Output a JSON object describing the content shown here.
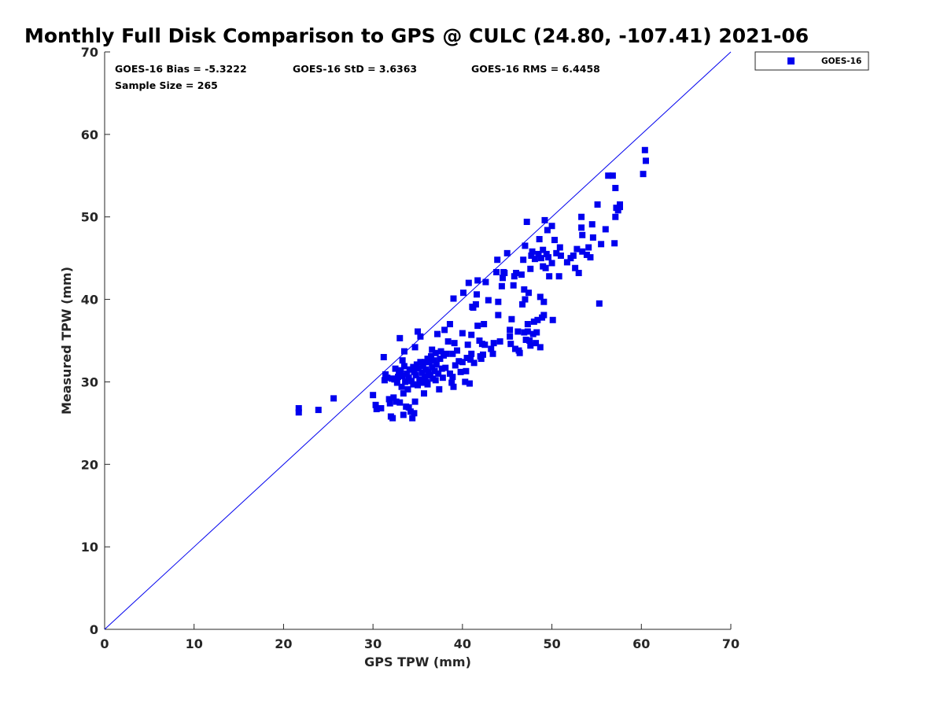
{
  "chart_data": {
    "type": "scatter",
    "title": "Monthly Full Disk Comparison to GPS @ CULC (24.80, -107.41) 2021-06",
    "xlabel": "GPS TPW (mm)",
    "ylabel": "Measured TPW (mm)",
    "xlim": [
      0,
      70
    ],
    "ylim": [
      0,
      70
    ],
    "xticks": [
      "0",
      "10",
      "20",
      "30",
      "40",
      "50",
      "60",
      "70"
    ],
    "yticks": [
      "0",
      "10",
      "20",
      "30",
      "40",
      "50",
      "60",
      "70"
    ],
    "grid": false,
    "legend_position": "top-right-outside",
    "reference_line": {
      "x": [
        0,
        70
      ],
      "y": [
        0,
        70
      ],
      "color": "#0000ee"
    },
    "stats": {
      "bias": "GOES-16 Bias = -5.3222",
      "std": "GOES-16 StD = 3.6363",
      "rms": "GOES-16 RMS = 6.4458",
      "sample": "Sample Size = 265"
    },
    "series": [
      {
        "name": "GOES-16",
        "color": "#0000ee",
        "marker": "square",
        "points": [
          [
            21.7,
            26.8
          ],
          [
            21.7,
            26.3
          ],
          [
            23.9,
            26.6
          ],
          [
            25.6,
            28.0
          ],
          [
            30.0,
            28.4
          ],
          [
            30.3,
            27.2
          ],
          [
            30.4,
            26.7
          ],
          [
            30.9,
            26.8
          ],
          [
            31.2,
            33.0
          ],
          [
            31.3,
            30.2
          ],
          [
            31.4,
            30.9
          ],
          [
            31.6,
            30.5
          ],
          [
            31.8,
            27.9
          ],
          [
            31.9,
            27.4
          ],
          [
            32.0,
            25.8
          ],
          [
            32.1,
            30.4
          ],
          [
            32.2,
            25.6
          ],
          [
            32.3,
            28.1
          ],
          [
            32.4,
            30.3
          ],
          [
            32.5,
            31.6
          ],
          [
            32.6,
            27.6
          ],
          [
            32.7,
            29.9
          ],
          [
            32.8,
            30.6
          ],
          [
            32.9,
            31.1
          ],
          [
            33.0,
            35.3
          ],
          [
            33.0,
            27.5
          ],
          [
            33.1,
            31.4
          ],
          [
            33.2,
            29.4
          ],
          [
            33.3,
            30.7
          ],
          [
            33.3,
            32.6
          ],
          [
            33.4,
            26.0
          ],
          [
            33.4,
            28.6
          ],
          [
            33.5,
            31.9
          ],
          [
            33.5,
            33.7
          ],
          [
            33.6,
            30.0
          ],
          [
            33.7,
            27.0
          ],
          [
            33.8,
            31.0
          ],
          [
            33.9,
            29.1
          ],
          [
            34.0,
            30.5
          ],
          [
            34.0,
            26.9
          ],
          [
            34.1,
            31.5
          ],
          [
            34.2,
            26.4
          ],
          [
            34.3,
            30.1
          ],
          [
            34.4,
            25.6
          ],
          [
            34.5,
            31.8
          ],
          [
            34.5,
            29.7
          ],
          [
            34.6,
            26.2
          ],
          [
            34.6,
            31.2
          ],
          [
            34.7,
            34.2
          ],
          [
            34.7,
            27.6
          ],
          [
            34.8,
            30.8
          ],
          [
            34.9,
            32.1
          ],
          [
            35.0,
            36.1
          ],
          [
            35.0,
            29.6
          ],
          [
            35.1,
            31.6
          ],
          [
            35.2,
            30.3
          ],
          [
            35.3,
            32.4
          ],
          [
            35.3,
            35.5
          ],
          [
            35.4,
            29.9
          ],
          [
            35.5,
            31.1
          ],
          [
            35.6,
            31.9
          ],
          [
            35.7,
            28.6
          ],
          [
            35.8,
            30.6
          ],
          [
            35.8,
            32.4
          ],
          [
            35.9,
            31.5
          ],
          [
            36.0,
            30.0
          ],
          [
            36.1,
            32.8
          ],
          [
            36.1,
            29.7
          ],
          [
            36.2,
            31.2
          ],
          [
            36.3,
            32.4
          ],
          [
            36.4,
            30.8
          ],
          [
            36.5,
            33.1
          ],
          [
            36.6,
            31.8
          ],
          [
            36.6,
            33.9
          ],
          [
            36.7,
            30.4
          ],
          [
            36.8,
            32.6
          ],
          [
            36.9,
            31.3
          ],
          [
            37.0,
            33.5
          ],
          [
            37.0,
            30.2
          ],
          [
            37.1,
            32.1
          ],
          [
            37.2,
            35.8
          ],
          [
            37.3,
            31.0
          ],
          [
            37.4,
            29.1
          ],
          [
            37.5,
            32.8
          ],
          [
            37.6,
            33.7
          ],
          [
            37.7,
            31.6
          ],
          [
            37.8,
            30.5
          ],
          [
            37.9,
            33.2
          ],
          [
            38.0,
            36.3
          ],
          [
            38.1,
            31.7
          ],
          [
            38.2,
            33.4
          ],
          [
            38.4,
            34.9
          ],
          [
            38.6,
            37.0
          ],
          [
            38.6,
            31.0
          ],
          [
            38.8,
            29.9
          ],
          [
            38.9,
            30.6
          ],
          [
            38.9,
            33.4
          ],
          [
            39.0,
            29.4
          ],
          [
            39.0,
            40.1
          ],
          [
            39.1,
            34.7
          ],
          [
            39.2,
            32.0
          ],
          [
            39.4,
            33.8
          ],
          [
            39.6,
            32.5
          ],
          [
            39.8,
            31.2
          ],
          [
            40.0,
            32.4
          ],
          [
            40.0,
            35.9
          ],
          [
            40.1,
            40.8
          ],
          [
            40.3,
            30.0
          ],
          [
            40.4,
            31.3
          ],
          [
            40.5,
            32.9
          ],
          [
            40.6,
            34.5
          ],
          [
            40.7,
            42.0
          ],
          [
            40.8,
            29.8
          ],
          [
            40.9,
            32.7
          ],
          [
            41.0,
            35.7
          ],
          [
            41.0,
            33.4
          ],
          [
            41.1,
            39.1
          ],
          [
            41.2,
            39.0
          ],
          [
            41.3,
            32.3
          ],
          [
            41.5,
            39.4
          ],
          [
            41.6,
            40.6
          ],
          [
            41.7,
            42.3
          ],
          [
            41.7,
            36.8
          ],
          [
            41.9,
            35.0
          ],
          [
            42.0,
            33.1
          ],
          [
            42.1,
            32.8
          ],
          [
            42.2,
            34.6
          ],
          [
            42.3,
            33.3
          ],
          [
            42.4,
            37.0
          ],
          [
            42.5,
            34.5
          ],
          [
            42.6,
            42.1
          ],
          [
            42.9,
            39.9
          ],
          [
            43.2,
            34.0
          ],
          [
            43.4,
            33.4
          ],
          [
            43.5,
            34.7
          ],
          [
            43.8,
            43.3
          ],
          [
            43.9,
            44.8
          ],
          [
            44.0,
            38.1
          ],
          [
            44.0,
            39.7
          ],
          [
            44.2,
            34.9
          ],
          [
            44.4,
            41.6
          ],
          [
            44.5,
            42.6
          ],
          [
            44.6,
            43.3
          ],
          [
            44.7,
            43.2
          ],
          [
            45.0,
            45.6
          ],
          [
            45.3,
            35.5
          ],
          [
            45.3,
            36.3
          ],
          [
            45.4,
            34.6
          ],
          [
            45.5,
            37.6
          ],
          [
            45.7,
            41.7
          ],
          [
            45.8,
            42.8
          ],
          [
            45.9,
            34.0
          ],
          [
            46.0,
            43.2
          ],
          [
            46.2,
            36.1
          ],
          [
            46.3,
            33.8
          ],
          [
            46.4,
            33.5
          ],
          [
            46.6,
            43.0
          ],
          [
            46.7,
            39.4
          ],
          [
            46.8,
            44.8
          ],
          [
            46.9,
            41.2
          ],
          [
            46.9,
            36.0
          ],
          [
            47.0,
            40.0
          ],
          [
            47.0,
            46.5
          ],
          [
            47.1,
            35.1
          ],
          [
            47.2,
            49.4
          ],
          [
            47.3,
            36.1
          ],
          [
            47.3,
            37.0
          ],
          [
            47.4,
            40.8
          ],
          [
            47.5,
            35.0
          ],
          [
            47.6,
            34.4
          ],
          [
            47.6,
            43.7
          ],
          [
            47.7,
            45.3
          ],
          [
            47.8,
            45.8
          ],
          [
            47.9,
            35.8
          ],
          [
            48.0,
            37.3
          ],
          [
            48.1,
            44.9
          ],
          [
            48.2,
            34.7
          ],
          [
            48.3,
            36.0
          ],
          [
            48.4,
            37.5
          ],
          [
            48.5,
            45.5
          ],
          [
            48.6,
            47.3
          ],
          [
            48.7,
            34.2
          ],
          [
            48.7,
            40.3
          ],
          [
            48.8,
            45.0
          ],
          [
            48.9,
            37.8
          ],
          [
            49.0,
            46.0
          ],
          [
            49.0,
            44.0
          ],
          [
            49.1,
            38.1
          ],
          [
            49.1,
            39.7
          ],
          [
            49.2,
            49.6
          ],
          [
            49.3,
            43.8
          ],
          [
            49.4,
            45.5
          ],
          [
            49.5,
            48.4
          ],
          [
            49.6,
            45.1
          ],
          [
            49.7,
            42.8
          ],
          [
            50.0,
            48.9
          ],
          [
            50.0,
            44.4
          ],
          [
            50.1,
            37.5
          ],
          [
            50.3,
            47.2
          ],
          [
            50.5,
            45.6
          ],
          [
            50.8,
            42.8
          ],
          [
            50.9,
            46.3
          ],
          [
            51.0,
            45.3
          ],
          [
            51.7,
            44.5
          ],
          [
            52.1,
            45.0
          ],
          [
            52.4,
            45.3
          ],
          [
            52.6,
            43.8
          ],
          [
            52.8,
            46.1
          ],
          [
            53.0,
            43.2
          ],
          [
            53.3,
            50.0
          ],
          [
            53.3,
            48.7
          ],
          [
            53.4,
            47.8
          ],
          [
            53.4,
            45.8
          ],
          [
            53.9,
            45.4
          ],
          [
            54.1,
            46.3
          ],
          [
            54.3,
            45.1
          ],
          [
            54.5,
            49.1
          ],
          [
            54.6,
            47.5
          ],
          [
            55.1,
            51.5
          ],
          [
            55.3,
            39.5
          ],
          [
            55.5,
            46.7
          ],
          [
            56.0,
            48.5
          ],
          [
            56.3,
            55.0
          ],
          [
            56.8,
            55.0
          ],
          [
            57.0,
            46.8
          ],
          [
            57.1,
            53.5
          ],
          [
            57.1,
            50.0
          ],
          [
            57.2,
            51.1
          ],
          [
            57.4,
            50.8
          ],
          [
            57.6,
            51.5
          ],
          [
            57.6,
            51.2
          ],
          [
            60.2,
            55.2
          ],
          [
            60.4,
            58.1
          ],
          [
            60.5,
            56.8
          ]
        ]
      }
    ]
  }
}
